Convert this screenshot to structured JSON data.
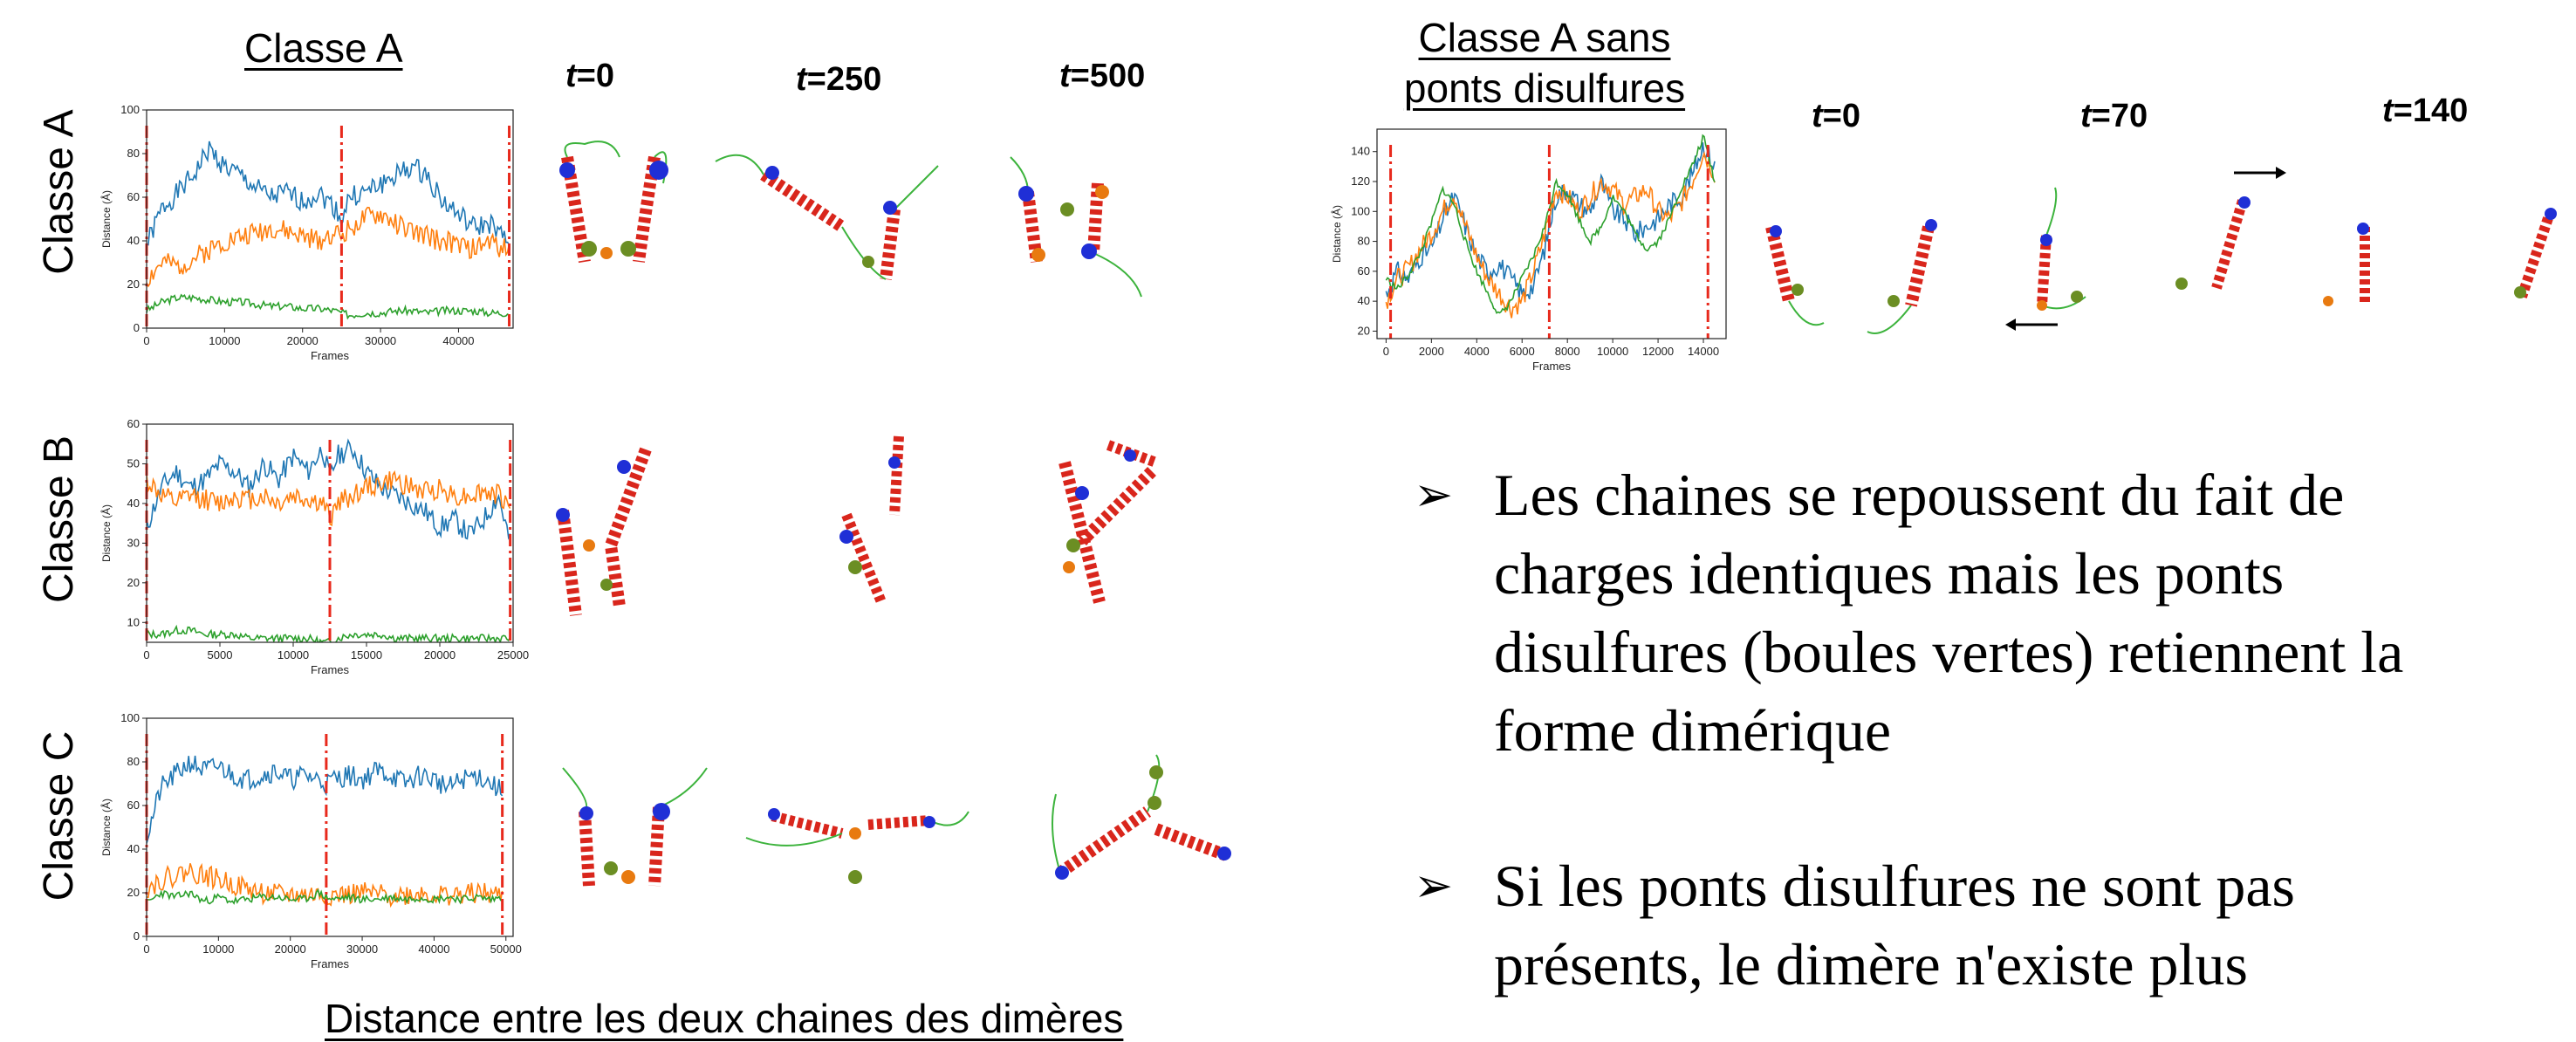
{
  "titles": {
    "classe_a": "Classe A",
    "classe_a_sans_line1": "Classe A sans",
    "classe_a_sans_line2": "ponts disulfures",
    "bottom": "Distance entre les deux chaines des dimères"
  },
  "row_labels": [
    "Classe A",
    "Classe B",
    "Classe C"
  ],
  "time_labels_left": [
    {
      "var": "t",
      "rest": "=0"
    },
    {
      "var": "t",
      "rest": "=250"
    },
    {
      "var": "t",
      "rest": "=500"
    }
  ],
  "time_labels_right": [
    {
      "var": "t",
      "rest": "=0"
    },
    {
      "var": "t",
      "rest": "=70"
    },
    {
      "var": "t",
      "rest": "=140"
    }
  ],
  "bullets": [
    {
      "arrow": "➢",
      "text": "Les chaines se repoussent du fait de charges identiques mais les ponts disulfures (boules vertes) retiennent la forme dimérique"
    },
    {
      "arrow": "➢",
      "text": "Si les ponts disulfures ne sont pas présents, le dimère n'existe plus"
    }
  ],
  "colors": {
    "series1": "#1f77b4",
    "series2": "#ff7f0e",
    "series3": "#2ca02c",
    "marker": "#e8291c",
    "helix": "#d9261c",
    "coil": "#3cb33c",
    "n_term": "#1f2fd6",
    "c_term": "#e87a10",
    "bridge": "#6b8e23"
  },
  "chart_data": [
    {
      "id": "classe-a",
      "type": "line",
      "xlabel": "Frames",
      "ylabel": "Distance (Å)",
      "xlim": [
        0,
        47000
      ],
      "ylim": [
        0,
        100
      ],
      "xticks": [
        0,
        10000,
        20000,
        30000,
        40000
      ],
      "yticks": [
        0,
        20,
        40,
        60,
        80,
        100
      ],
      "vlines": [
        0,
        25000,
        46500
      ],
      "series": [
        {
          "color": "#1f77b4",
          "x": [
            0,
            2000,
            4000,
            6000,
            8000,
            10000,
            12000,
            14000,
            16000,
            18000,
            20000,
            22000,
            24000,
            25000,
            26000,
            28000,
            30000,
            32000,
            34000,
            36000,
            38000,
            40000,
            42000,
            44000,
            46500
          ],
          "values": [
            38,
            55,
            62,
            70,
            82,
            74,
            70,
            64,
            60,
            62,
            58,
            62,
            56,
            50,
            60,
            62,
            66,
            70,
            74,
            70,
            58,
            52,
            46,
            48,
            38
          ]
        },
        {
          "color": "#ff7f0e",
          "x": [
            0,
            2000,
            4000,
            6000,
            8000,
            10000,
            12000,
            14000,
            16000,
            18000,
            20000,
            22000,
            24000,
            25000,
            26000,
            28000,
            30000,
            32000,
            34000,
            36000,
            38000,
            40000,
            42000,
            44000,
            46500
          ],
          "values": [
            22,
            30,
            28,
            32,
            36,
            40,
            42,
            44,
            46,
            44,
            42,
            40,
            44,
            42,
            46,
            50,
            52,
            48,
            44,
            42,
            40,
            38,
            36,
            40,
            35
          ]
        },
        {
          "color": "#2ca02c",
          "x": [
            0,
            2000,
            4000,
            6000,
            8000,
            10000,
            12000,
            14000,
            16000,
            18000,
            20000,
            22000,
            24000,
            25000,
            26000,
            28000,
            30000,
            32000,
            34000,
            36000,
            38000,
            40000,
            42000,
            44000,
            46500
          ],
          "values": [
            8,
            12,
            14,
            14,
            13,
            12,
            12,
            11,
            10,
            10,
            9,
            9,
            8,
            7,
            6,
            7,
            7,
            8,
            8,
            7,
            8,
            8,
            8,
            7,
            7
          ]
        }
      ]
    },
    {
      "id": "classe-b",
      "type": "line",
      "xlabel": "Frames",
      "ylabel": "Distance (Å)",
      "xlim": [
        0,
        25000
      ],
      "ylim": [
        5,
        60
      ],
      "xticks": [
        0,
        5000,
        10000,
        15000,
        20000,
        25000
      ],
      "yticks": [
        10,
        20,
        30,
        40,
        50,
        60
      ],
      "vlines": [
        0,
        12500,
        24800
      ],
      "series": [
        {
          "color": "#1f77b4",
          "x": [
            0,
            1000,
            2000,
            3000,
            4000,
            5000,
            6000,
            7000,
            8000,
            9000,
            10000,
            11000,
            12000,
            12500,
            13000,
            14000,
            15000,
            16000,
            17000,
            18000,
            19000,
            20000,
            21000,
            22000,
            23000,
            24000,
            24800
          ],
          "values": [
            34,
            44,
            48,
            44,
            46,
            50,
            48,
            44,
            50,
            46,
            52,
            48,
            54,
            46,
            52,
            54,
            48,
            44,
            42,
            40,
            38,
            34,
            36,
            32,
            36,
            42,
            30
          ]
        },
        {
          "color": "#ff7f0e",
          "x": [
            0,
            1000,
            2000,
            3000,
            4000,
            5000,
            6000,
            7000,
            8000,
            9000,
            10000,
            11000,
            12000,
            12500,
            13000,
            14000,
            15000,
            16000,
            17000,
            18000,
            19000,
            20000,
            21000,
            22000,
            23000,
            24000,
            24800
          ],
          "values": [
            46,
            42,
            40,
            42,
            41,
            40,
            42,
            41,
            42,
            40,
            42,
            41,
            40,
            36,
            40,
            42,
            44,
            45,
            46,
            44,
            43,
            44,
            42,
            42,
            43,
            42,
            40
          ]
        },
        {
          "color": "#2ca02c",
          "x": [
            0,
            1000,
            2000,
            3000,
            4000,
            5000,
            6000,
            7000,
            8000,
            9000,
            10000,
            11000,
            12000,
            12500,
            13000,
            14000,
            15000,
            16000,
            17000,
            18000,
            19000,
            20000,
            21000,
            22000,
            23000,
            24000,
            24800
          ],
          "values": [
            7,
            7,
            8,
            8,
            7,
            7,
            7,
            6,
            6,
            6,
            6,
            6,
            5,
            5,
            6,
            7,
            7,
            7,
            6,
            6,
            6,
            6,
            6,
            6,
            6,
            6,
            6
          ]
        }
      ]
    },
    {
      "id": "classe-c",
      "type": "line",
      "xlabel": "Frames",
      "ylabel": "Distance (Å)",
      "xlim": [
        0,
        51000
      ],
      "ylim": [
        0,
        100
      ],
      "xticks": [
        0,
        10000,
        20000,
        30000,
        40000,
        50000
      ],
      "yticks": [
        0,
        20,
        40,
        60,
        80,
        100
      ],
      "vlines": [
        0,
        25000,
        49500
      ],
      "series": [
        {
          "color": "#1f77b4",
          "x": [
            0,
            2000,
            4000,
            6000,
            8000,
            10000,
            12000,
            14000,
            16000,
            18000,
            20000,
            22000,
            24000,
            25000,
            26000,
            28000,
            30000,
            32000,
            34000,
            36000,
            38000,
            40000,
            42000,
            44000,
            46000,
            48000,
            49500
          ],
          "values": [
            45,
            68,
            74,
            80,
            76,
            78,
            74,
            72,
            74,
            76,
            72,
            74,
            72,
            70,
            72,
            74,
            72,
            76,
            74,
            70,
            74,
            72,
            68,
            72,
            74,
            70,
            66
          ]
        },
        {
          "color": "#ff7f0e",
          "x": [
            0,
            2000,
            4000,
            6000,
            8000,
            10000,
            12000,
            14000,
            16000,
            18000,
            20000,
            22000,
            24000,
            25000,
            26000,
            28000,
            30000,
            32000,
            34000,
            36000,
            38000,
            40000,
            42000,
            44000,
            46000,
            48000,
            49500
          ],
          "values": [
            22,
            26,
            28,
            30,
            28,
            26,
            24,
            22,
            20,
            19,
            19,
            19,
            19,
            19,
            19,
            19,
            20,
            19,
            19,
            19,
            20,
            19,
            19,
            19,
            20,
            19,
            19
          ]
        },
        {
          "color": "#2ca02c",
          "x": [
            0,
            2000,
            4000,
            6000,
            8000,
            10000,
            12000,
            14000,
            16000,
            18000,
            20000,
            22000,
            24000,
            25000,
            26000,
            28000,
            30000,
            32000,
            34000,
            36000,
            38000,
            40000,
            42000,
            44000,
            46000,
            48000,
            49500
          ],
          "values": [
            15,
            20,
            18,
            20,
            16,
            18,
            16,
            17,
            18,
            18,
            17,
            17,
            20,
            18,
            17,
            18,
            17,
            17,
            18,
            17,
            18,
            17,
            18,
            17,
            18,
            17,
            18
          ]
        }
      ]
    },
    {
      "id": "classe-a-sans",
      "type": "line",
      "xlabel": "Frames",
      "ylabel": "Distance (Å)",
      "xlim": [
        -400,
        15000
      ],
      "ylim": [
        15,
        155
      ],
      "xticks": [
        0,
        2000,
        4000,
        6000,
        8000,
        10000,
        12000,
        14000
      ],
      "yticks": [
        20,
        40,
        60,
        80,
        100,
        120,
        140
      ],
      "vlines": [
        200,
        7200,
        14200
      ],
      "series": [
        {
          "color": "#1f77b4",
          "x": [
            0,
            500,
            1000,
            1500,
            2000,
            2500,
            3000,
            3500,
            4000,
            4500,
            5000,
            5500,
            6000,
            6500,
            7000,
            7500,
            8000,
            8500,
            9000,
            9500,
            10000,
            10500,
            11000,
            11500,
            12000,
            12500,
            13000,
            13500,
            14000,
            14500
          ],
          "values": [
            45,
            60,
            55,
            70,
            75,
            95,
            110,
            90,
            70,
            60,
            65,
            55,
            45,
            50,
            75,
            110,
            115,
            105,
            100,
            120,
            100,
            95,
            85,
            90,
            95,
            105,
            110,
            125,
            145,
            130
          ]
        },
        {
          "color": "#ff7f0e",
          "x": [
            0,
            500,
            1000,
            1500,
            2000,
            2500,
            3000,
            3500,
            4000,
            4500,
            5000,
            5500,
            6000,
            6500,
            7000,
            7500,
            8000,
            8500,
            9000,
            9500,
            10000,
            10500,
            11000,
            11500,
            12000,
            12500,
            13000,
            13500,
            14000,
            14500
          ],
          "values": [
            40,
            55,
            62,
            75,
            85,
            100,
            112,
            90,
            70,
            55,
            45,
            35,
            40,
            60,
            85,
            115,
            110,
            100,
            110,
            120,
            115,
            105,
            110,
            115,
            100,
            95,
            105,
            120,
            140,
            125
          ]
        },
        {
          "color": "#2ca02c",
          "x": [
            0,
            500,
            1000,
            1500,
            2000,
            2500,
            3000,
            3500,
            4000,
            4500,
            5000,
            5500,
            6000,
            6500,
            7000,
            7500,
            8000,
            8500,
            9000,
            9500,
            10000,
            10500,
            11000,
            11500,
            12000,
            12500,
            13000,
            13500,
            14000,
            14500
          ],
          "values": [
            55,
            48,
            58,
            72,
            92,
            115,
            105,
            80,
            60,
            45,
            30,
            40,
            55,
            70,
            90,
            120,
            112,
            95,
            80,
            90,
            110,
            100,
            85,
            75,
            80,
            95,
            115,
            130,
            150,
            120
          ]
        }
      ]
    }
  ]
}
